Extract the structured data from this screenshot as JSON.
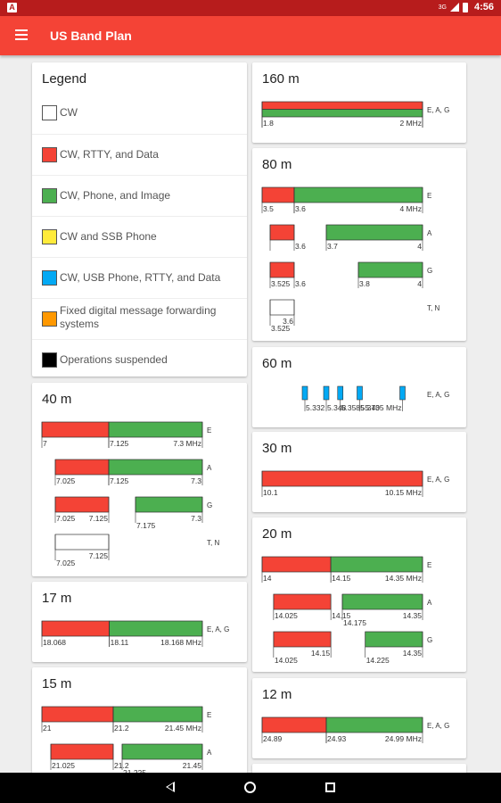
{
  "status_bar": {
    "network": "3G",
    "time": "4:56"
  },
  "app_bar": {
    "title": "US Band Plan",
    "menu_icon": "hamburger-menu-icon"
  },
  "colors": {
    "red": "#f44336",
    "green": "#4caf50",
    "yellow": "#ffeb3b",
    "blue": "#03a9f4",
    "orange": "#ff9800",
    "black": "#000000",
    "white": "#ffffff"
  },
  "legend": {
    "title": "Legend",
    "items": [
      {
        "label": "CW",
        "color": "#ffffff"
      },
      {
        "label": "CW, RTTY, and Data",
        "color": "#f44336"
      },
      {
        "label": "CW, Phone, and Image",
        "color": "#4caf50"
      },
      {
        "label": "CW and SSB Phone",
        "color": "#ffeb3b"
      },
      {
        "label": "CW, USB Phone, RTTY, and Data",
        "color": "#03a9f4"
      },
      {
        "label": "Fixed digital message forwarding systems",
        "color": "#ff9800"
      },
      {
        "label": "Operations suspended",
        "color": "#000000"
      }
    ]
  },
  "bands": [
    {
      "id": "160m",
      "title": "160 m",
      "range": [
        1.8,
        2.0
      ],
      "rows": [
        {
          "classes": "E, A, G",
          "layers": [
            {
              "color": "red",
              "from": 1.8,
              "to": 2.0,
              "part": "top"
            },
            {
              "color": "green",
              "from": 1.8,
              "to": 2.0,
              "part": "bottom"
            }
          ],
          "labels": [
            {
              "text": "1.8",
              "at": 1.8,
              "align": "start"
            },
            {
              "text": "2 MHz",
              "at": 2.0,
              "align": "end"
            }
          ]
        }
      ]
    },
    {
      "id": "80m",
      "title": "80 m",
      "range": [
        3.5,
        4.0
      ],
      "rows": [
        {
          "classes": "E",
          "layers": [
            {
              "color": "red",
              "from": 3.5,
              "to": 3.6
            },
            {
              "color": "green",
              "from": 3.6,
              "to": 4.0
            }
          ],
          "labels": [
            {
              "text": "3.5",
              "at": 3.5,
              "align": "start"
            },
            {
              "text": "3.6",
              "at": 3.6,
              "align": "start"
            },
            {
              "text": "4 MHz",
              "at": 4.0,
              "align": "end"
            }
          ]
        },
        {
          "classes": "A",
          "layers": [
            {
              "color": "red",
              "from": 3.525,
              "to": 3.6
            },
            {
              "color": "green",
              "from": 3.7,
              "to": 4.0
            }
          ],
          "labels": [
            {
              "text": "3.6",
              "at": 3.6,
              "align": "start"
            },
            {
              "text": "3.7",
              "at": 3.7,
              "align": "start"
            },
            {
              "text": "4",
              "at": 4.0,
              "align": "end"
            }
          ]
        },
        {
          "classes": "G",
          "layers": [
            {
              "color": "red",
              "from": 3.525,
              "to": 3.6
            },
            {
              "color": "green",
              "from": 3.8,
              "to": 4.0
            }
          ],
          "labels": [
            {
              "text": "3.525",
              "at": 3.525,
              "align": "start"
            },
            {
              "text": "3.6",
              "at": 3.6,
              "align": "start"
            },
            {
              "text": "3.8",
              "at": 3.8,
              "align": "start"
            },
            {
              "text": "4",
              "at": 4.0,
              "align": "end"
            }
          ]
        },
        {
          "classes": "T, N",
          "layers": [
            {
              "color": "white",
              "from": 3.525,
              "to": 3.6
            }
          ],
          "labels": [
            {
              "text": "3.6",
              "at": 3.6,
              "align": "end"
            },
            {
              "text": "3.525",
              "at": 3.525,
              "align": "start",
              "lower": true
            }
          ]
        }
      ]
    },
    {
      "id": "60m",
      "title": "60 m",
      "range": [
        5.3,
        5.42
      ],
      "rows": [
        {
          "classes": "E, A, G",
          "channels": [
            5.332,
            5.348,
            5.3585,
            5.373,
            5.405
          ],
          "channel_color": "blue",
          "labels": [
            {
              "text": "5.332",
              "at": 5.332,
              "align": "start"
            },
            {
              "text": "5.348",
              "at": 5.348,
              "align": "start"
            },
            {
              "text": "5.3585",
              "at": 5.3585,
              "align": "start"
            },
            {
              "text": "5.373",
              "at": 5.373,
              "align": "start"
            },
            {
              "text": "5.405 MHz",
              "at": 5.405,
              "align": "end"
            }
          ]
        }
      ]
    },
    {
      "id": "30m",
      "title": "30 m",
      "range": [
        10.1,
        10.15
      ],
      "rows": [
        {
          "classes": "E, A, G",
          "layers": [
            {
              "color": "red",
              "from": 10.1,
              "to": 10.15
            }
          ],
          "labels": [
            {
              "text": "10.1",
              "at": 10.1,
              "align": "start"
            },
            {
              "text": "10.15 MHz",
              "at": 10.15,
              "align": "end"
            }
          ]
        }
      ]
    },
    {
      "id": "20m",
      "title": "20 m",
      "range": [
        14.0,
        14.35
      ],
      "rows": [
        {
          "classes": "E",
          "layers": [
            {
              "color": "red",
              "from": 14.0,
              "to": 14.15
            },
            {
              "color": "green",
              "from": 14.15,
              "to": 14.35
            }
          ],
          "labels": [
            {
              "text": "14",
              "at": 14.0,
              "align": "start"
            },
            {
              "text": "14.15",
              "at": 14.15,
              "align": "start"
            },
            {
              "text": "14.35 MHz",
              "at": 14.35,
              "align": "end"
            }
          ]
        },
        {
          "classes": "A",
          "layers": [
            {
              "color": "red",
              "from": 14.025,
              "to": 14.15
            },
            {
              "color": "green",
              "from": 14.175,
              "to": 14.35
            }
          ],
          "labels": [
            {
              "text": "14.025",
              "at": 14.025,
              "align": "start"
            },
            {
              "text": "14.15",
              "at": 14.15,
              "align": "start"
            },
            {
              "text": "14.175",
              "at": 14.175,
              "align": "start",
              "lower": true
            },
            {
              "text": "14.35",
              "at": 14.35,
              "align": "end"
            }
          ]
        },
        {
          "classes": "G",
          "layers": [
            {
              "color": "red",
              "from": 14.025,
              "to": 14.15
            },
            {
              "color": "green",
              "from": 14.225,
              "to": 14.35
            }
          ],
          "labels": [
            {
              "text": "14.025",
              "at": 14.025,
              "align": "start",
              "lower": true
            },
            {
              "text": "14.15",
              "at": 14.15,
              "align": "end"
            },
            {
              "text": "14.225",
              "at": 14.225,
              "align": "start",
              "lower": true
            },
            {
              "text": "14.35",
              "at": 14.35,
              "align": "end"
            }
          ]
        }
      ]
    },
    {
      "id": "12m",
      "title": "12 m",
      "range": [
        24.89,
        24.99
      ],
      "rows": [
        {
          "classes": "E, A, G",
          "layers": [
            {
              "color": "red",
              "from": 24.89,
              "to": 24.93
            },
            {
              "color": "green",
              "from": 24.93,
              "to": 24.99
            }
          ],
          "labels": [
            {
              "text": "24.89",
              "at": 24.89,
              "align": "start"
            },
            {
              "text": "24.93",
              "at": 24.93,
              "align": "start"
            },
            {
              "text": "24.99 MHz",
              "at": 24.99,
              "align": "end"
            }
          ]
        }
      ]
    },
    {
      "id": "40m",
      "title": "40 m",
      "range": [
        7.0,
        7.3
      ],
      "rows": [
        {
          "classes": "E",
          "layers": [
            {
              "color": "red",
              "from": 7.0,
              "to": 7.125
            },
            {
              "color": "green",
              "from": 7.125,
              "to": 7.3
            }
          ],
          "labels": [
            {
              "text": "7",
              "at": 7.0,
              "align": "start"
            },
            {
              "text": "7.125",
              "at": 7.125,
              "align": "start"
            },
            {
              "text": "7.3 MHz",
              "at": 7.3,
              "align": "end"
            }
          ]
        },
        {
          "classes": "A",
          "layers": [
            {
              "color": "red",
              "from": 7.025,
              "to": 7.125
            },
            {
              "color": "green",
              "from": 7.125,
              "to": 7.3
            }
          ],
          "labels": [
            {
              "text": "7.025",
              "at": 7.025,
              "align": "start"
            },
            {
              "text": "7.125",
              "at": 7.125,
              "align": "start"
            },
            {
              "text": "7.3",
              "at": 7.3,
              "align": "end"
            }
          ]
        },
        {
          "classes": "G",
          "layers": [
            {
              "color": "red",
              "from": 7.025,
              "to": 7.125
            },
            {
              "color": "green",
              "from": 7.175,
              "to": 7.3
            }
          ],
          "labels": [
            {
              "text": "7.025",
              "at": 7.025,
              "align": "start"
            },
            {
              "text": "7.125",
              "at": 7.125,
              "align": "end"
            },
            {
              "text": "7.175",
              "at": 7.175,
              "align": "start",
              "lower": true
            },
            {
              "text": "7.3",
              "at": 7.3,
              "align": "end"
            }
          ]
        },
        {
          "classes": "T, N",
          "layers": [
            {
              "color": "white",
              "from": 7.025,
              "to": 7.125
            }
          ],
          "labels": [
            {
              "text": "7.125",
              "at": 7.125,
              "align": "end"
            },
            {
              "text": "7.025",
              "at": 7.025,
              "align": "start",
              "lower": true
            }
          ]
        }
      ]
    },
    {
      "id": "17m",
      "title": "17 m",
      "range": [
        18.068,
        18.168
      ],
      "rows": [
        {
          "classes": "E, A, G",
          "layers": [
            {
              "color": "red",
              "from": 18.068,
              "to": 18.11
            },
            {
              "color": "green",
              "from": 18.11,
              "to": 18.168
            }
          ],
          "labels": [
            {
              "text": "18.068",
              "at": 18.068,
              "align": "start"
            },
            {
              "text": "18.11",
              "at": 18.11,
              "align": "start"
            },
            {
              "text": "18.168 MHz",
              "at": 18.168,
              "align": "end"
            }
          ]
        }
      ]
    },
    {
      "id": "15m",
      "title": "15 m",
      "range": [
        21.0,
        21.45
      ],
      "rows": [
        {
          "classes": "E",
          "layers": [
            {
              "color": "red",
              "from": 21.0,
              "to": 21.2
            },
            {
              "color": "green",
              "from": 21.2,
              "to": 21.45
            }
          ],
          "labels": [
            {
              "text": "21",
              "at": 21.0,
              "align": "start"
            },
            {
              "text": "21.2",
              "at": 21.2,
              "align": "start"
            },
            {
              "text": "21.45 MHz",
              "at": 21.45,
              "align": "end"
            }
          ]
        },
        {
          "classes": "A",
          "layers": [
            {
              "color": "red",
              "from": 21.025,
              "to": 21.2
            },
            {
              "color": "green",
              "from": 21.225,
              "to": 21.45
            }
          ],
          "labels": [
            {
              "text": "21.025",
              "at": 21.025,
              "align": "start"
            },
            {
              "text": "21.2",
              "at": 21.2,
              "align": "start"
            },
            {
              "text": "21.225",
              "at": 21.225,
              "align": "start",
              "lower": true
            },
            {
              "text": "21.45",
              "at": 21.45,
              "align": "end"
            }
          ]
        }
      ]
    }
  ]
}
